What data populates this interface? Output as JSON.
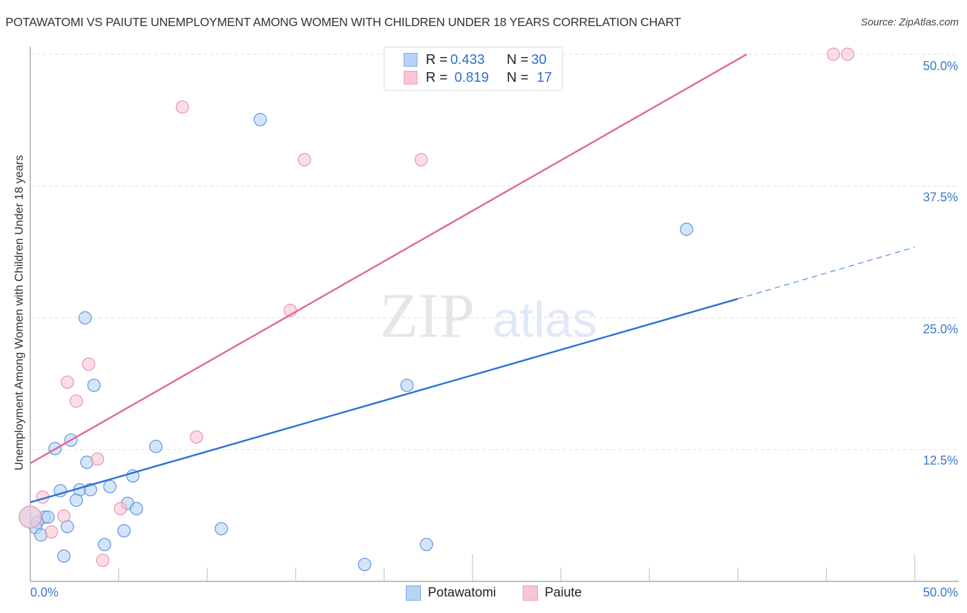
{
  "header": {
    "title": "POTAWATOMI VS PAIUTE UNEMPLOYMENT AMONG WOMEN WITH CHILDREN UNDER 18 YEARS CORRELATION CHART",
    "source": "Source: ZipAtlas.com"
  },
  "legend_top": {
    "rows": [
      {
        "series": "Potawatomi",
        "r_label": "R = ",
        "r_value": "0.433",
        "n_label": "N = ",
        "n_value": "30"
      },
      {
        "series": "Paiute",
        "r_label": "R = ",
        "r_value": "0.819",
        "n_label": "N = ",
        "n_value": "17"
      }
    ]
  },
  "legend_bottom": [
    {
      "label": "Potawatomi"
    },
    {
      "label": "Paiute"
    }
  ],
  "axis": {
    "y_ticks": [
      "50.0%",
      "37.5%",
      "25.0%",
      "12.5%"
    ],
    "x_ticks": [
      "0.0%",
      "50.0%"
    ],
    "ylabel": "Unemployment Among Women with Children Under 18 years"
  },
  "watermark": {
    "zip": "ZIP",
    "atlas": "atlas"
  },
  "colors": {
    "blue_fill": "#b8d3f5",
    "blue_stroke": "#5b93dd",
    "blue_line": "#2a72d4",
    "pink_fill": "#f9c6d6",
    "pink_stroke": "#eb8fb0",
    "pink_line": "#e0698f",
    "tick_label": "#3a78c9"
  },
  "chart_data": {
    "type": "scatter",
    "title": "POTAWATOMI VS PAIUTE UNEMPLOYMENT AMONG WOMEN WITH CHILDREN UNDER 18 YEARS CORRELATION CHART",
    "xlabel": "",
    "ylabel": "Unemployment Among Women with Children Under 18 years",
    "xlim": [
      0,
      50
    ],
    "ylim": [
      0,
      50
    ],
    "x_ticks": [
      0,
      50
    ],
    "y_ticks": [
      12.5,
      25.0,
      37.5,
      50.0
    ],
    "grid": "horizontal dashed",
    "legend_position": "top-center and bottom-center",
    "series": [
      {
        "name": "Potawatomi",
        "R": 0.433,
        "N": 30,
        "color": "#5b93dd",
        "points": [
          [
            3.1,
            25.0
          ],
          [
            3.6,
            18.6
          ],
          [
            2.3,
            13.4
          ],
          [
            1.4,
            12.6
          ],
          [
            3.2,
            11.3
          ],
          [
            7.1,
            12.8
          ],
          [
            5.8,
            10.0
          ],
          [
            1.7,
            8.6
          ],
          [
            2.8,
            8.7
          ],
          [
            3.4,
            8.7
          ],
          [
            4.5,
            9.0
          ],
          [
            2.6,
            7.7
          ],
          [
            5.5,
            7.4
          ],
          [
            6.0,
            6.9
          ],
          [
            0.8,
            6.1
          ],
          [
            1.0,
            6.1
          ],
          [
            0.4,
            5.6
          ],
          [
            0.3,
            5.1
          ],
          [
            2.1,
            5.2
          ],
          [
            0.6,
            4.4
          ],
          [
            5.3,
            4.8
          ],
          [
            10.8,
            5.0
          ],
          [
            4.2,
            3.5
          ],
          [
            1.9,
            2.4
          ],
          [
            13.0,
            43.8
          ],
          [
            21.3,
            18.6
          ],
          [
            22.4,
            3.5
          ],
          [
            18.9,
            1.6
          ],
          [
            37.1,
            33.4
          ],
          [
            0.0,
            6.1
          ]
        ],
        "trendline": {
          "x0": 0,
          "y0": 7.5,
          "x1": 40,
          "y1": 26.8,
          "dashed_extension_to": [
            50,
            31.7
          ]
        }
      },
      {
        "name": "Paiute",
        "R": 0.819,
        "N": 17,
        "color": "#eb8fb0",
        "points": [
          [
            8.6,
            45.0
          ],
          [
            15.5,
            40.0
          ],
          [
            22.1,
            40.0
          ],
          [
            45.4,
            50.0
          ],
          [
            46.2,
            50.0
          ],
          [
            14.7,
            25.7
          ],
          [
            3.3,
            20.6
          ],
          [
            2.1,
            18.9
          ],
          [
            2.6,
            17.1
          ],
          [
            9.4,
            13.7
          ],
          [
            3.8,
            11.6
          ],
          [
            0.7,
            8.0
          ],
          [
            1.9,
            6.2
          ],
          [
            5.1,
            6.9
          ],
          [
            1.2,
            4.7
          ],
          [
            4.1,
            2.0
          ],
          [
            0.0,
            6.1
          ]
        ],
        "trendline": {
          "x0": 0,
          "y0": 11.2,
          "x1": 40.5,
          "y1": 50.0
        }
      }
    ]
  }
}
